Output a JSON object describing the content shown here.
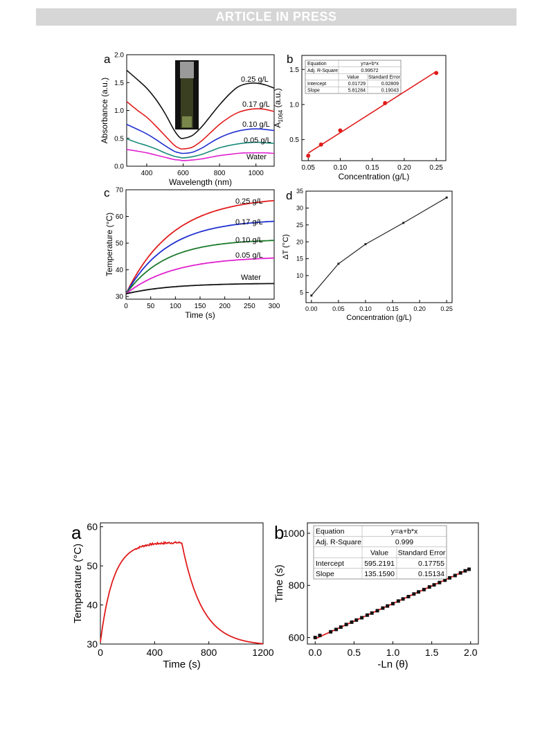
{
  "header": {
    "banner": "ARTICLE IN PRESS"
  },
  "figure1": {
    "a": {
      "label": "a",
      "xlabel": "Wavelength (nm)",
      "ylabel": "Absorbance (a.u.)",
      "xticks": [
        "400",
        "600",
        "800",
        "1000"
      ],
      "yticks": [
        "0.0",
        "0.5",
        "1.0",
        "1.5",
        "2.0"
      ],
      "curve_labels": [
        "0.25 g/L",
        "0.17 g/L",
        "0.10 g/L",
        "0.05 g/L",
        "Water"
      ]
    },
    "b": {
      "label": "b",
      "xlabel": "Concentration (g/L)",
      "ylabel_main": "A",
      "ylabel_sub": "1064",
      "ylabel_tail": " (a.u.)",
      "xticks": [
        "0.05",
        "0.10",
        "0.15",
        "0.20",
        "0.25"
      ],
      "yticks": [
        "0.5",
        "1.0",
        "1.5"
      ],
      "table": {
        "rows": [
          [
            "Equation",
            "y=a+b*x",
            ""
          ],
          [
            "Adj. R-Square",
            "0.99572",
            ""
          ],
          [
            "",
            "Value",
            "Standard Error"
          ],
          [
            "Intercept",
            "0.01729",
            "0.02809"
          ],
          [
            "Slope",
            "5.81284",
            "0.19043"
          ]
        ]
      }
    },
    "c": {
      "label": "c",
      "xlabel": "Time (s)",
      "ylabel": "Temperature (°C)",
      "xticks": [
        "0",
        "50",
        "100",
        "150",
        "200",
        "250",
        "300"
      ],
      "yticks": [
        "30",
        "40",
        "50",
        "60",
        "70"
      ],
      "curve_labels": [
        "0.25 g/L",
        "0.17 g/L",
        "0.10 g/L",
        "0.05 g/L",
        "Water"
      ]
    },
    "d": {
      "label": "d",
      "xlabel": "Concentration (g/L)",
      "ylabel": "ΔT (°C)",
      "xticks": [
        "0.00",
        "0.05",
        "0.10",
        "0.15",
        "0.20",
        "0.25"
      ],
      "yticks": [
        "5",
        "10",
        "15",
        "20",
        "25",
        "30",
        "35"
      ]
    }
  },
  "figure2": {
    "a": {
      "label": "a",
      "xlabel": "Time (s)",
      "ylabel": "Temperature (°C)",
      "xticks": [
        "0",
        "400",
        "800",
        "1200"
      ],
      "yticks": [
        "30",
        "40",
        "50",
        "60"
      ]
    },
    "b": {
      "label": "b",
      "xlabel": "-Ln (θ)",
      "ylabel": "Time (s)",
      "xticks": [
        "0.0",
        "0.5",
        "1.0",
        "1.5",
        "2.0"
      ],
      "yticks": [
        "600",
        "800",
        "1000"
      ],
      "table": {
        "rows": [
          [
            "Equation",
            "y=a+b*x",
            ""
          ],
          [
            "Adj. R-Square",
            "0.999",
            ""
          ],
          [
            "",
            "Value",
            "Standard Error"
          ],
          [
            "Intercept",
            "595.2191",
            "0.17755"
          ],
          [
            "Slope",
            "135.1590",
            "0.15134"
          ]
        ]
      }
    }
  },
  "chart_data": [
    {
      "panel": "fig1-a",
      "type": "line",
      "x_axis": {
        "min": 290,
        "max": 1100
      },
      "y_axis": {
        "min": 0,
        "max": 2.0
      },
      "series": [
        {
          "name": "0.25 g/L",
          "color": "#111111",
          "x": [
            290,
            350,
            400,
            450,
            500,
            550,
            580,
            600,
            650,
            700,
            750,
            800,
            850,
            900,
            950,
            1000,
            1050,
            1100
          ],
          "y": [
            1.72,
            1.55,
            1.4,
            1.2,
            0.95,
            0.65,
            0.52,
            0.5,
            0.55,
            0.7,
            0.9,
            1.1,
            1.28,
            1.42,
            1.48,
            1.49,
            1.46,
            1.4
          ]
        },
        {
          "name": "0.17 g/L",
          "color": "#e01b1b",
          "x": [
            290,
            350,
            400,
            450,
            500,
            550,
            580,
            600,
            650,
            700,
            750,
            800,
            850,
            900,
            950,
            1000,
            1050,
            1100
          ],
          "y": [
            1.16,
            1.0,
            0.88,
            0.72,
            0.55,
            0.38,
            0.32,
            0.31,
            0.34,
            0.45,
            0.6,
            0.75,
            0.87,
            0.96,
            1.01,
            1.03,
            1.02,
            0.98
          ]
        },
        {
          "name": "0.10 g/L",
          "color": "#1f2fd0",
          "x": [
            290,
            350,
            400,
            450,
            500,
            550,
            580,
            600,
            650,
            700,
            750,
            800,
            850,
            900,
            950,
            1000,
            1050,
            1100
          ],
          "y": [
            0.75,
            0.66,
            0.58,
            0.48,
            0.37,
            0.27,
            0.24,
            0.23,
            0.25,
            0.32,
            0.42,
            0.51,
            0.58,
            0.63,
            0.66,
            0.67,
            0.66,
            0.64
          ]
        },
        {
          "name": "0.05 g/L",
          "color": "#1a8a7a",
          "x": [
            290,
            350,
            400,
            450,
            500,
            550,
            580,
            600,
            650,
            700,
            750,
            800,
            850,
            900,
            950,
            1000,
            1050,
            1100
          ],
          "y": [
            0.49,
            0.42,
            0.37,
            0.31,
            0.24,
            0.18,
            0.16,
            0.15,
            0.17,
            0.21,
            0.27,
            0.33,
            0.37,
            0.4,
            0.42,
            0.43,
            0.42,
            0.41
          ]
        },
        {
          "name": "Water",
          "color": "#e020d0",
          "x": [
            290,
            350,
            400,
            450,
            500,
            550,
            580,
            600,
            650,
            700,
            750,
            800,
            850,
            900,
            950,
            1000,
            1050,
            1100
          ],
          "y": [
            0.3,
            0.27,
            0.24,
            0.2,
            0.16,
            0.12,
            0.11,
            0.1,
            0.11,
            0.13,
            0.16,
            0.19,
            0.21,
            0.23,
            0.24,
            0.24,
            0.24,
            0.23
          ]
        }
      ]
    },
    {
      "panel": "fig1-b",
      "type": "scatter",
      "x_axis": {
        "min": 0.04,
        "max": 0.265
      },
      "y_axis": {
        "min": 0.2,
        "max": 1.7
      },
      "points": {
        "x": [
          0.05,
          0.07,
          0.1,
          0.17,
          0.25
        ],
        "y": [
          0.27,
          0.43,
          0.63,
          1.02,
          1.45
        ]
      },
      "fit": {
        "intercept": 0.01729,
        "slope": 5.81284,
        "x_range": [
          0.05,
          0.25
        ]
      }
    },
    {
      "panel": "fig1-c",
      "type": "line",
      "x_axis": {
        "min": 0,
        "max": 300
      },
      "y_axis": {
        "min": 29,
        "max": 70
      },
      "series": [
        {
          "name": "0.25 g/L",
          "color": "#e01b1b",
          "T0": 31,
          "Tmax": 67.5,
          "tau": 95
        },
        {
          "name": "0.17 g/L",
          "color": "#1f2fd0",
          "T0": 31,
          "Tmax": 59,
          "tau": 85
        },
        {
          "name": "0.10 g/L",
          "color": "#1a7a2a",
          "T0": 31,
          "Tmax": 51.5,
          "tau": 80
        },
        {
          "name": "0.05 g/L",
          "color": "#e020d0",
          "T0": 31,
          "Tmax": 45,
          "tau": 95
        },
        {
          "name": "Water",
          "color": "#111111",
          "T0": 31,
          "Tmax": 35,
          "tau": 90
        }
      ]
    },
    {
      "panel": "fig1-d",
      "type": "line",
      "x_axis": {
        "min": -0.01,
        "max": 0.26
      },
      "y_axis": {
        "min": 2,
        "max": 35
      },
      "x": [
        0.0,
        0.05,
        0.1,
        0.17,
        0.25
      ],
      "y": [
        4.1,
        13.5,
        19.3,
        25.6,
        33.1
      ]
    },
    {
      "panel": "fig2-a",
      "type": "line",
      "x_axis": {
        "min": 0,
        "max": 1200
      },
      "y_axis": {
        "min": 30,
        "max": 61
      },
      "heating": {
        "T0": 30.5,
        "Tmax": 56,
        "tau": 95,
        "end": 600
      },
      "cooling": {
        "Tstart": 56,
        "Tamb": 29.6,
        "tau": 150,
        "end": 1200
      }
    },
    {
      "panel": "fig2-b",
      "type": "scatter",
      "x_axis": {
        "min": -0.1,
        "max": 2.1
      },
      "y_axis": {
        "min": 575,
        "max": 1040
      },
      "points": {
        "x": [
          0.0,
          0.06,
          0.2,
          0.27,
          0.33,
          0.4,
          0.47,
          0.53,
          0.6,
          0.67,
          0.73,
          0.8,
          0.87,
          0.93,
          1.0,
          1.07,
          1.13,
          1.2,
          1.27,
          1.33,
          1.4,
          1.47,
          1.53,
          1.6,
          1.67,
          1.73,
          1.8,
          1.87,
          1.93,
          1.98
        ],
        "y": [
          600,
          608,
          622,
          631,
          640,
          650,
          659,
          667,
          676,
          686,
          694,
          703,
          713,
          721,
          730,
          740,
          748,
          757,
          767,
          775,
          784,
          794,
          802,
          811,
          820,
          829,
          838,
          848,
          856,
          862
        ]
      },
      "fit": {
        "intercept": 595.2191,
        "slope": 135.159,
        "x_range": [
          0,
          2.0
        ]
      }
    }
  ]
}
